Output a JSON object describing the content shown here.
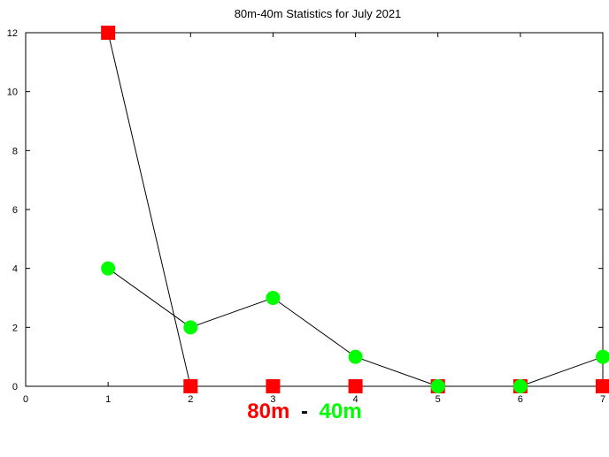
{
  "chart_data": {
    "type": "line",
    "title": "80m-40m Statistics for July 2021",
    "xlabel": "",
    "ylabel": "",
    "xlim": [
      0,
      7
    ],
    "ylim": [
      0,
      12
    ],
    "x_ticks": [
      0,
      1,
      2,
      3,
      4,
      5,
      6,
      7
    ],
    "y_ticks": [
      0,
      2,
      4,
      6,
      8,
      10,
      12
    ],
    "grid": false,
    "x": [
      1,
      2,
      3,
      4,
      5,
      6,
      7
    ],
    "series": [
      {
        "name": "80m",
        "color": "#ff0000",
        "marker": "square",
        "values": [
          12,
          0,
          0,
          0,
          0,
          0,
          0
        ]
      },
      {
        "name": "40m",
        "color": "#00ff00",
        "marker": "circle",
        "values": [
          4,
          2,
          3,
          1,
          0,
          0,
          1
        ]
      }
    ],
    "legend": {
      "placement": "bottom-center",
      "separator": "-",
      "separator_color": "#000000"
    }
  }
}
